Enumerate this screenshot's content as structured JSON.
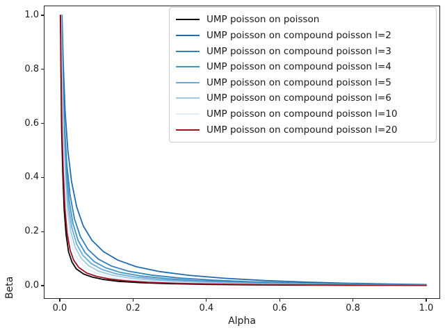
{
  "chart_data": {
    "type": "line",
    "title": "",
    "xlabel": "Alpha",
    "ylabel": "Beta",
    "xlim": [
      -0.043,
      1.038
    ],
    "ylim": [
      -0.049,
      1.036
    ],
    "grid": false,
    "legend_position": "upper right",
    "axis_color": "#222222",
    "legend_border_color": "#cccccc",
    "xticks": {
      "values": [
        0.0,
        0.2,
        0.4,
        0.6,
        0.8,
        1.0
      ],
      "labels": [
        "0.0",
        "0.2",
        "0.4",
        "0.6",
        "0.8",
        "1.0"
      ]
    },
    "yticks": {
      "values": [
        0.0,
        0.2,
        0.4,
        0.6,
        0.8,
        1.0
      ],
      "labels": [
        "0.0",
        "0.2",
        "0.4",
        "0.6",
        "0.8",
        "1.0"
      ]
    },
    "series": [
      {
        "id": "poisson-on-poisson",
        "label": "UMP poisson on poisson",
        "color": "#000000",
        "points": [
          [
            0.0015,
            1.0
          ],
          [
            0.003,
            0.8
          ],
          [
            0.005,
            0.58
          ],
          [
            0.008,
            0.42
          ],
          [
            0.012,
            0.28
          ],
          [
            0.017,
            0.19
          ],
          [
            0.024,
            0.125
          ],
          [
            0.033,
            0.088
          ],
          [
            0.045,
            0.062
          ],
          [
            0.065,
            0.043
          ],
          [
            0.09,
            0.031
          ],
          [
            0.12,
            0.0225
          ],
          [
            0.16,
            0.016
          ],
          [
            0.22,
            0.011
          ],
          [
            0.3,
            0.0072
          ],
          [
            0.4,
            0.0046
          ],
          [
            0.52,
            0.003
          ],
          [
            0.66,
            0.002
          ],
          [
            0.82,
            0.0012
          ],
          [
            1.0,
            0.0008
          ]
        ]
      },
      {
        "id": "compound-l2",
        "label": "UMP poisson on compound poisson l=2",
        "color": "#1e6bb0",
        "points": [
          [
            0.006,
            1.0
          ],
          [
            0.0095,
            0.82
          ],
          [
            0.0145,
            0.645
          ],
          [
            0.022,
            0.5
          ],
          [
            0.032,
            0.385
          ],
          [
            0.046,
            0.292
          ],
          [
            0.064,
            0.221
          ],
          [
            0.088,
            0.167
          ],
          [
            0.119,
            0.126
          ],
          [
            0.158,
            0.0945
          ],
          [
            0.208,
            0.0705
          ],
          [
            0.272,
            0.0522
          ],
          [
            0.352,
            0.0382
          ],
          [
            0.45,
            0.0272
          ],
          [
            0.56,
            0.0188
          ],
          [
            0.67,
            0.013
          ],
          [
            0.79,
            0.0088
          ],
          [
            0.9,
            0.0058
          ],
          [
            1.0,
            0.004
          ]
        ]
      },
      {
        "id": "compound-l3",
        "label": "UMP poisson on compound poisson l=3",
        "color": "#2f7fbc",
        "points": [
          [
            0.005,
            1.0
          ],
          [
            0.008,
            0.8
          ],
          [
            0.0125,
            0.6
          ],
          [
            0.019,
            0.45
          ],
          [
            0.028,
            0.335
          ],
          [
            0.04,
            0.247
          ],
          [
            0.056,
            0.182
          ],
          [
            0.077,
            0.134
          ],
          [
            0.105,
            0.0985
          ],
          [
            0.141,
            0.0725
          ],
          [
            0.188,
            0.0533
          ],
          [
            0.249,
            0.039
          ],
          [
            0.327,
            0.0283
          ],
          [
            0.42,
            0.02
          ],
          [
            0.53,
            0.0138
          ],
          [
            0.65,
            0.0094
          ],
          [
            0.78,
            0.0062
          ],
          [
            0.9,
            0.0041
          ],
          [
            1.0,
            0.0029
          ]
        ]
      },
      {
        "id": "compound-l4",
        "label": "UMP poisson on compound poisson l=4",
        "color": "#4292c6",
        "points": [
          [
            0.0045,
            1.0
          ],
          [
            0.0075,
            0.79
          ],
          [
            0.0115,
            0.585
          ],
          [
            0.0175,
            0.43
          ],
          [
            0.0255,
            0.315
          ],
          [
            0.036,
            0.229
          ],
          [
            0.05,
            0.167
          ],
          [
            0.069,
            0.122
          ],
          [
            0.094,
            0.089
          ],
          [
            0.126,
            0.0655
          ],
          [
            0.168,
            0.0482
          ],
          [
            0.223,
            0.0355
          ],
          [
            0.294,
            0.0256
          ],
          [
            0.38,
            0.018
          ],
          [
            0.49,
            0.0124
          ],
          [
            0.61,
            0.0084
          ],
          [
            0.75,
            0.0055
          ],
          [
            0.88,
            0.0036
          ],
          [
            1.0,
            0.0025
          ]
        ]
      },
      {
        "id": "compound-l5",
        "label": "UMP poisson on compound poisson l=5",
        "color": "#68abd4",
        "points": [
          [
            0.004,
            1.0
          ],
          [
            0.0065,
            0.785
          ],
          [
            0.0105,
            0.575
          ],
          [
            0.016,
            0.415
          ],
          [
            0.023,
            0.3
          ],
          [
            0.033,
            0.214
          ],
          [
            0.046,
            0.154
          ],
          [
            0.063,
            0.112
          ],
          [
            0.086,
            0.0815
          ],
          [
            0.116,
            0.0595
          ],
          [
            0.155,
            0.0435
          ],
          [
            0.207,
            0.0318
          ],
          [
            0.274,
            0.0228
          ],
          [
            0.36,
            0.0158
          ],
          [
            0.46,
            0.0108
          ],
          [
            0.58,
            0.0073
          ],
          [
            0.72,
            0.0048
          ],
          [
            0.86,
            0.0031
          ],
          [
            1.0,
            0.0021
          ]
        ]
      },
      {
        "id": "compound-l6",
        "label": "UMP poisson on compound poisson l=6",
        "color": "#9dcae1",
        "points": [
          [
            0.0035,
            1.0
          ],
          [
            0.006,
            0.78
          ],
          [
            0.0095,
            0.565
          ],
          [
            0.0145,
            0.4
          ],
          [
            0.021,
            0.285
          ],
          [
            0.03,
            0.2
          ],
          [
            0.042,
            0.142
          ],
          [
            0.058,
            0.102
          ],
          [
            0.079,
            0.0735
          ],
          [
            0.107,
            0.053
          ],
          [
            0.144,
            0.0385
          ],
          [
            0.193,
            0.028
          ],
          [
            0.257,
            0.0198
          ],
          [
            0.34,
            0.0135
          ],
          [
            0.44,
            0.0092
          ],
          [
            0.56,
            0.0062
          ],
          [
            0.7,
            0.0041
          ],
          [
            0.85,
            0.0026
          ],
          [
            1.0,
            0.0017
          ]
        ]
      },
      {
        "id": "compound-l10",
        "label": "UMP poisson on compound poisson l=10",
        "color": "#e3edf7",
        "points": [
          [
            0.003,
            1.0
          ],
          [
            0.005,
            0.79
          ],
          [
            0.008,
            0.575
          ],
          [
            0.0125,
            0.405
          ],
          [
            0.018,
            0.28
          ],
          [
            0.026,
            0.19
          ],
          [
            0.037,
            0.131
          ],
          [
            0.051,
            0.093
          ],
          [
            0.07,
            0.066
          ],
          [
            0.095,
            0.0475
          ],
          [
            0.13,
            0.034
          ],
          [
            0.175,
            0.0245
          ],
          [
            0.235,
            0.0172
          ],
          [
            0.31,
            0.0118
          ],
          [
            0.41,
            0.0078
          ],
          [
            0.53,
            0.0052
          ],
          [
            0.67,
            0.0034
          ],
          [
            0.83,
            0.0021
          ],
          [
            1.0,
            0.0014
          ]
        ]
      },
      {
        "id": "compound-l20",
        "label": "UMP poisson on compound poisson l=20",
        "color": "#9e1021",
        "points": [
          [
            0.002,
            1.0
          ],
          [
            0.0037,
            0.8
          ],
          [
            0.006,
            0.58
          ],
          [
            0.0095,
            0.42
          ],
          [
            0.014,
            0.285
          ],
          [
            0.02,
            0.195
          ],
          [
            0.028,
            0.132
          ],
          [
            0.038,
            0.094
          ],
          [
            0.052,
            0.067
          ],
          [
            0.073,
            0.047
          ],
          [
            0.1,
            0.0345
          ],
          [
            0.135,
            0.025
          ],
          [
            0.18,
            0.018
          ],
          [
            0.24,
            0.0125
          ],
          [
            0.32,
            0.0085
          ],
          [
            0.42,
            0.0058
          ],
          [
            0.54,
            0.004
          ],
          [
            0.68,
            0.0027
          ],
          [
            0.84,
            0.0017
          ],
          [
            1.0,
            0.0012
          ]
        ]
      }
    ]
  }
}
